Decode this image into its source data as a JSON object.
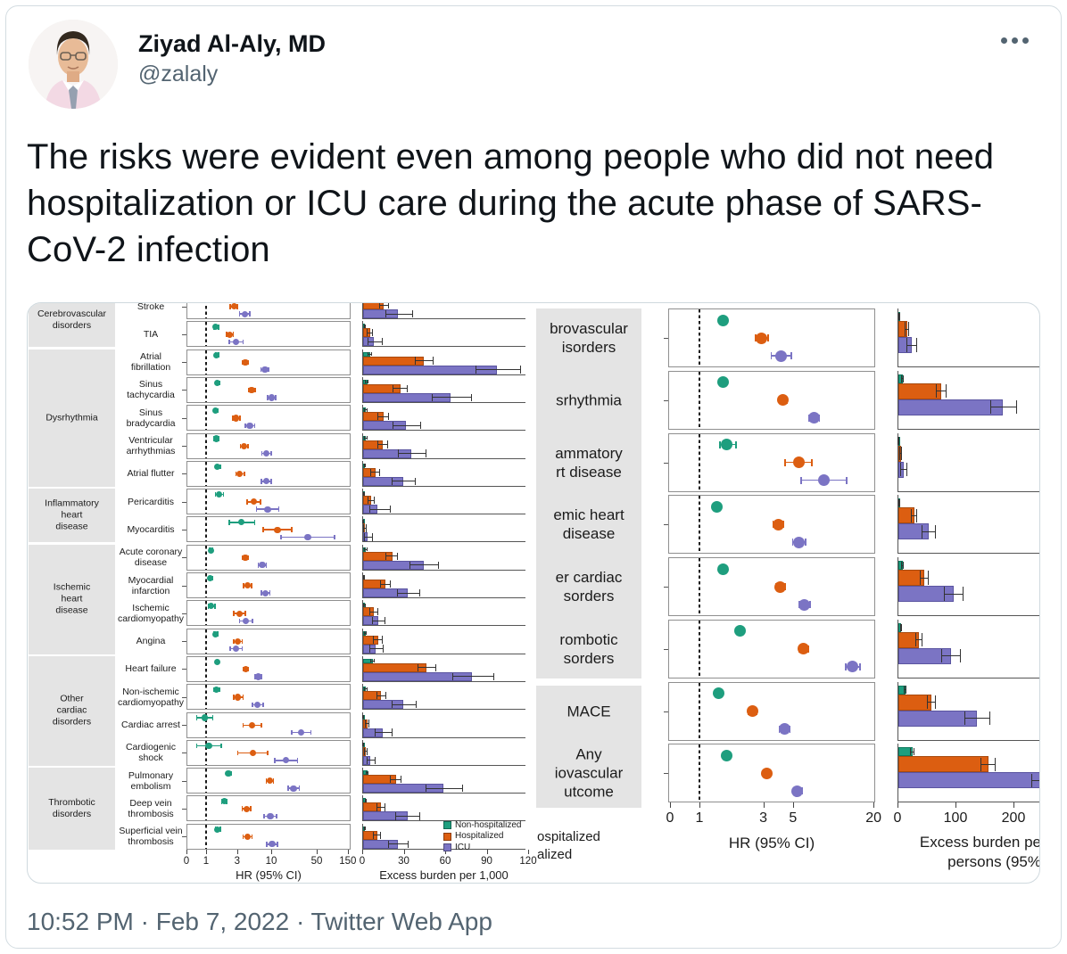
{
  "tweet": {
    "author_name": "Ziyad Al-Aly, MD",
    "author_handle": "@zalaly",
    "body": "The risks were evident even among people who did not need hospitalization or ICU care during the acute phase of SARS-CoV-2 infection",
    "timestamp": "10:52 PM · Feb 7, 2022 · Twitter Web App"
  },
  "icons": {
    "more_menu": "three-dots-horizontal",
    "avatar": "profile-photo-man-glasses-pink-shirt"
  },
  "colors": {
    "non_hospitalized": "#1E9E7E",
    "non_hospitalized_edge": "#0e7a5e",
    "hospitalized": "#DC5E11",
    "hospitalized_edge": "#a84a0e",
    "icu": "#7B74C4",
    "icu_edge": "#5a54a0",
    "category_bg": "#e4e4e4",
    "panel_border": "#8f8f8f",
    "axis_dark": "#555555",
    "text_dark": "#0f1419",
    "text_gray": "#536471",
    "card_border": "#cfd9de",
    "error_bar": "#333333",
    "reference_dash": "#1a1a1a"
  },
  "chart_data": [
    {
      "id": "left_hr_forest",
      "type": "scatter",
      "xlabel": "HR (95% CI)",
      "x_ticks": [
        0,
        1,
        3,
        10,
        50,
        150
      ],
      "x_scale": "log",
      "reference_line": 1,
      "legend_position": "none",
      "categories": [
        {
          "label": "Cerebrovascular\ndisorders",
          "row_span": [
            0,
            1
          ]
        },
        {
          "label": "Dysrhythmia",
          "row_span": [
            2,
            6
          ]
        },
        {
          "label": "Inflammatory\nheart\ndisease",
          "row_span": [
            7,
            8
          ]
        },
        {
          "label": "Ischemic\nheart\ndisease",
          "row_span": [
            9,
            12
          ]
        },
        {
          "label": "Other\ncardiac\ndisorders",
          "row_span": [
            13,
            16
          ]
        },
        {
          "label": "Thrombotic\ndisorders",
          "row_span": [
            17,
            19
          ]
        }
      ],
      "outcomes": [
        "Stroke",
        "TIA",
        "Atrial\nfibrillation",
        "Sinus\ntachycardia",
        "Sinus\nbradycardia",
        "Ventricular\narrhythmias",
        "Atrial flutter",
        "Pericarditis",
        "Myocarditis",
        "Acute coronary\ndisease",
        "Myocardial\ninfarction",
        "Ischemic\ncardiomyopathy",
        "Angina",
        "Heart failure",
        "Non-ischemic\ncardiomyopathy",
        "Cardiac arrest",
        "Cardiogenic\nshock",
        "Pulmonary\nembolism",
        "Deep vein\nthrombosis",
        "Superficial vein\nthrombosis"
      ],
      "series": [
        {
          "name": "Non-hospitalized",
          "hr": [
            [
              1.5,
              1.4,
              1.7
            ],
            [
              1.4,
              1.3,
              1.6
            ],
            [
              1.45,
              1.35,
              1.6
            ],
            [
              1.5,
              1.4,
              1.65
            ],
            [
              1.4,
              1.3,
              1.55
            ],
            [
              1.45,
              1.3,
              1.6
            ],
            [
              1.5,
              1.35,
              1.7
            ],
            [
              1.6,
              1.35,
              1.9
            ],
            [
              3.5,
              2.2,
              5.7
            ],
            [
              1.2,
              1.1,
              1.3
            ],
            [
              1.15,
              1.05,
              1.3
            ],
            [
              1.2,
              1.05,
              1.4
            ],
            [
              1.4,
              1.3,
              1.55
            ],
            [
              1.5,
              1.4,
              1.6
            ],
            [
              1.45,
              1.3,
              1.65
            ],
            [
              0.95,
              0.7,
              1.3
            ],
            [
              1.1,
              0.7,
              1.75
            ],
            [
              2.2,
              2.0,
              2.5
            ],
            [
              1.9,
              1.7,
              2.1
            ],
            [
              1.5,
              1.35,
              1.7
            ]
          ]
        },
        {
          "name": "Hospitalized",
          "hr": [
            [
              2.7,
              2.3,
              3.1
            ],
            [
              2.3,
              2.0,
              2.7
            ],
            [
              4.0,
              3.5,
              4.6
            ],
            [
              5.0,
              4.4,
              5.8
            ],
            [
              2.9,
              2.5,
              3.4
            ],
            [
              3.8,
              3.3,
              4.5
            ],
            [
              3.3,
              2.8,
              4.0
            ],
            [
              5.4,
              4.2,
              7.0
            ],
            [
              12.5,
              7.3,
              21.3
            ],
            [
              4.0,
              3.5,
              4.6
            ],
            [
              4.3,
              3.7,
              5.1
            ],
            [
              3.3,
              2.6,
              4.1
            ],
            [
              3.1,
              2.6,
              3.7
            ],
            [
              4.1,
              3.7,
              4.6
            ],
            [
              3.1,
              2.6,
              3.8
            ],
            [
              5.1,
              3.6,
              7.3
            ],
            [
              5.2,
              3.0,
              9.0
            ],
            [
              9.5,
              8.2,
              11.1
            ],
            [
              4.2,
              3.5,
              5.0
            ],
            [
              4.3,
              3.6,
              5.2
            ]
          ]
        },
        {
          "name": "ICU",
          "hr": [
            [
              3.9,
              3.2,
              4.8
            ],
            [
              2.9,
              2.2,
              3.8
            ],
            [
              8.0,
              6.8,
              9.4
            ],
            [
              10.2,
              8.6,
              12.1
            ],
            [
              4.7,
              3.9,
              5.7
            ],
            [
              8.5,
              7.0,
              10.3
            ],
            [
              8.4,
              6.9,
              10.3
            ],
            [
              8.8,
              5.8,
              13.4
            ],
            [
              36.5,
              13.7,
              97.0
            ],
            [
              7.3,
              6.2,
              8.6
            ],
            [
              8.2,
              6.9,
              9.8
            ],
            [
              4.1,
              3.2,
              5.3
            ],
            [
              2.9,
              2.3,
              3.7
            ],
            [
              6.3,
              5.5,
              7.3
            ],
            [
              6.2,
              5.0,
              7.7
            ],
            [
              29.0,
              20.0,
              42.0
            ],
            [
              17.0,
              11.0,
              26.0
            ],
            [
              22.0,
              17.6,
              27.6
            ],
            [
              9.7,
              7.6,
              12.4
            ],
            [
              10.3,
              8.3,
              12.9
            ]
          ]
        }
      ]
    },
    {
      "id": "left_excess_burden",
      "type": "bar",
      "xlabel": "Excess burden per 1,000",
      "x_ticks": [
        0,
        30,
        60,
        90,
        120
      ],
      "legend": [
        {
          "label": "Non-hospitalized",
          "color": "#1E9E7E"
        },
        {
          "label": "Hospitalized",
          "color": "#DC5E11"
        },
        {
          "label": "ICU",
          "color": "#7B74C4"
        }
      ],
      "series": [
        {
          "name": "Non-hospitalized",
          "values": [
            [
              4,
              3,
              5
            ],
            [
              1.5,
              1,
              2
            ],
            [
              5,
              4,
              6.5
            ],
            [
              3,
              2,
              4
            ],
            [
              2,
              1.5,
              3
            ],
            [
              2,
              1.5,
              3
            ],
            [
              1.5,
              1,
              2
            ],
            [
              1,
              0.7,
              1.5
            ],
            [
              0.4,
              0.2,
              0.7
            ],
            [
              2,
              1.5,
              3
            ],
            [
              1,
              0.7,
              1.6
            ],
            [
              1,
              0.5,
              1.8
            ],
            [
              2,
              1.5,
              2.8
            ],
            [
              7,
              5.5,
              8.5
            ],
            [
              2,
              1.5,
              3
            ],
            [
              0.3,
              0.1,
              0.6
            ],
            [
              0.3,
              0.1,
              0.6
            ],
            [
              3,
              2.5,
              4
            ],
            [
              2,
              1.7,
              2.8
            ],
            [
              1.5,
              1.1,
              2
            ]
          ]
        },
        {
          "name": "Hospitalized",
          "values": [
            [
              15,
              12,
              19
            ],
            [
              5,
              3,
              7
            ],
            [
              44,
              38,
              51
            ],
            [
              27,
              22,
              32
            ],
            [
              15,
              11,
              19
            ],
            [
              14,
              11,
              18
            ],
            [
              9,
              6,
              12
            ],
            [
              6,
              4,
              8.5
            ],
            [
              1.5,
              0.8,
              2.6
            ],
            [
              21,
              17,
              25
            ],
            [
              16,
              13,
              20
            ],
            [
              8,
              5,
              11
            ],
            [
              11,
              8,
              14
            ],
            [
              46,
              40,
              53
            ],
            [
              13,
              10,
              17
            ],
            [
              3,
              1.8,
              4.6
            ],
            [
              2,
              1,
              3.5
            ],
            [
              24,
              20,
              28
            ],
            [
              13,
              10,
              16
            ],
            [
              10,
              8,
              13
            ]
          ]
        },
        {
          "name": "ICU",
          "values": [
            [
              25,
              17,
              36
            ],
            [
              8,
              4,
              14
            ],
            [
              97,
              82,
              114
            ],
            [
              63,
              50,
              79
            ],
            [
              31,
              22,
              42
            ],
            [
              35,
              26,
              46
            ],
            [
              29,
              21,
              38
            ],
            [
              10,
              5,
              20
            ],
            [
              3.5,
              1.2,
              7
            ],
            [
              44,
              34,
              55
            ],
            [
              32,
              25,
              41
            ],
            [
              11,
              7,
              16
            ],
            [
              9,
              5,
              15
            ],
            [
              79,
              65,
              95
            ],
            [
              29,
              21,
              39
            ],
            [
              14,
              9,
              21
            ],
            [
              5,
              3,
              9
            ],
            [
              58,
              46,
              72
            ],
            [
              32,
              24,
              41
            ],
            [
              25,
              19,
              33
            ]
          ]
        }
      ]
    },
    {
      "id": "right_hr_forest",
      "type": "scatter",
      "xlabel": "HR (95% CI)",
      "x_ticks": [
        0,
        1,
        3,
        5,
        20
      ],
      "x_scale": "log",
      "reference_line": 1,
      "groups_visible_labels": [
        [
          "brovascular",
          "isorders"
        ],
        [
          "srhythmia"
        ],
        [
          "ammatory",
          "rt disease"
        ],
        [
          "emic heart",
          "disease"
        ],
        [
          "er cardiac",
          "sorders"
        ],
        [
          "rombotic",
          "sorders"
        ],
        [
          "MACE"
        ],
        [
          "Any",
          "iovascular",
          "utcome"
        ]
      ],
      "series": [
        {
          "name": "Non-hospitalized",
          "hr": [
            [
              1.5,
              1.4,
              1.6
            ],
            [
              1.5,
              1.45,
              1.6
            ],
            [
              1.6,
              1.4,
              1.9
            ],
            [
              1.35,
              1.3,
              1.45
            ],
            [
              1.5,
              1.45,
              1.6
            ],
            [
              2.0,
              1.9,
              2.1
            ],
            [
              1.4,
              1.35,
              1.5
            ],
            [
              1.6,
              1.55,
              1.7
            ]
          ]
        },
        {
          "name": "Hospitalized",
          "hr": [
            [
              2.9,
              2.6,
              3.3
            ],
            [
              4.2,
              3.9,
              4.6
            ],
            [
              5.5,
              4.3,
              7.0
            ],
            [
              3.9,
              3.5,
              4.3
            ],
            [
              4.0,
              3.7,
              4.4
            ],
            [
              6.0,
              5.5,
              6.6
            ],
            [
              2.5,
              2.3,
              2.7
            ],
            [
              3.2,
              3.0,
              3.4
            ]
          ]
        },
        {
          "name": "ICU",
          "hr": [
            [
              4.1,
              3.4,
              4.9
            ],
            [
              7.2,
              6.5,
              8.0
            ],
            [
              8.5,
              5.7,
              12.7
            ],
            [
              5.5,
              4.9,
              6.3
            ],
            [
              6.1,
              5.5,
              6.8
            ],
            [
              14.0,
              12.3,
              16.0
            ],
            [
              4.3,
              3.9,
              4.8
            ],
            [
              5.4,
              5.0,
              5.9
            ]
          ]
        }
      ]
    },
    {
      "id": "right_excess_burden",
      "type": "bar",
      "xlabel_visible_lines": [
        "Excess burden pe",
        "persons (95%"
      ],
      "x_ticks": [
        0,
        100,
        200
      ],
      "clipped_legend_lines": [
        "ospitalized",
        "alized"
      ],
      "series": [
        {
          "name": "Non-hospitalized",
          "values": [
            [
              2.5,
              1.8,
              3.3
            ],
            [
              8,
              6.5,
              9.5
            ],
            [
              1,
              0.7,
              1.6
            ],
            [
              2.5,
              1.8,
              3.5
            ],
            [
              7,
              5.5,
              8.5
            ],
            [
              5,
              4.2,
              6
            ],
            [
              12,
              10,
              14
            ],
            [
              24,
              21,
              27
            ]
          ]
        },
        {
          "name": "Hospitalized",
          "values": [
            [
              15,
              12,
              19
            ],
            [
              74,
              66,
              83
            ],
            [
              4,
              2.6,
              6
            ],
            [
              28,
              23,
              33
            ],
            [
              45,
              39,
              52
            ],
            [
              35,
              30,
              41
            ],
            [
              57,
              50,
              64
            ],
            [
              155,
              143,
              168
            ]
          ]
        },
        {
          "name": "ICU",
          "values": [
            [
              23,
              15,
              33
            ],
            [
              180,
              160,
              205
            ],
            [
              9,
              4.5,
              16
            ],
            [
              52,
              41,
              64
            ],
            [
              95,
              80,
              112
            ],
            [
              90,
              75,
              107
            ],
            [
              135,
              115,
              158
            ],
            [
              255,
              230,
              283
            ]
          ]
        }
      ]
    }
  ]
}
